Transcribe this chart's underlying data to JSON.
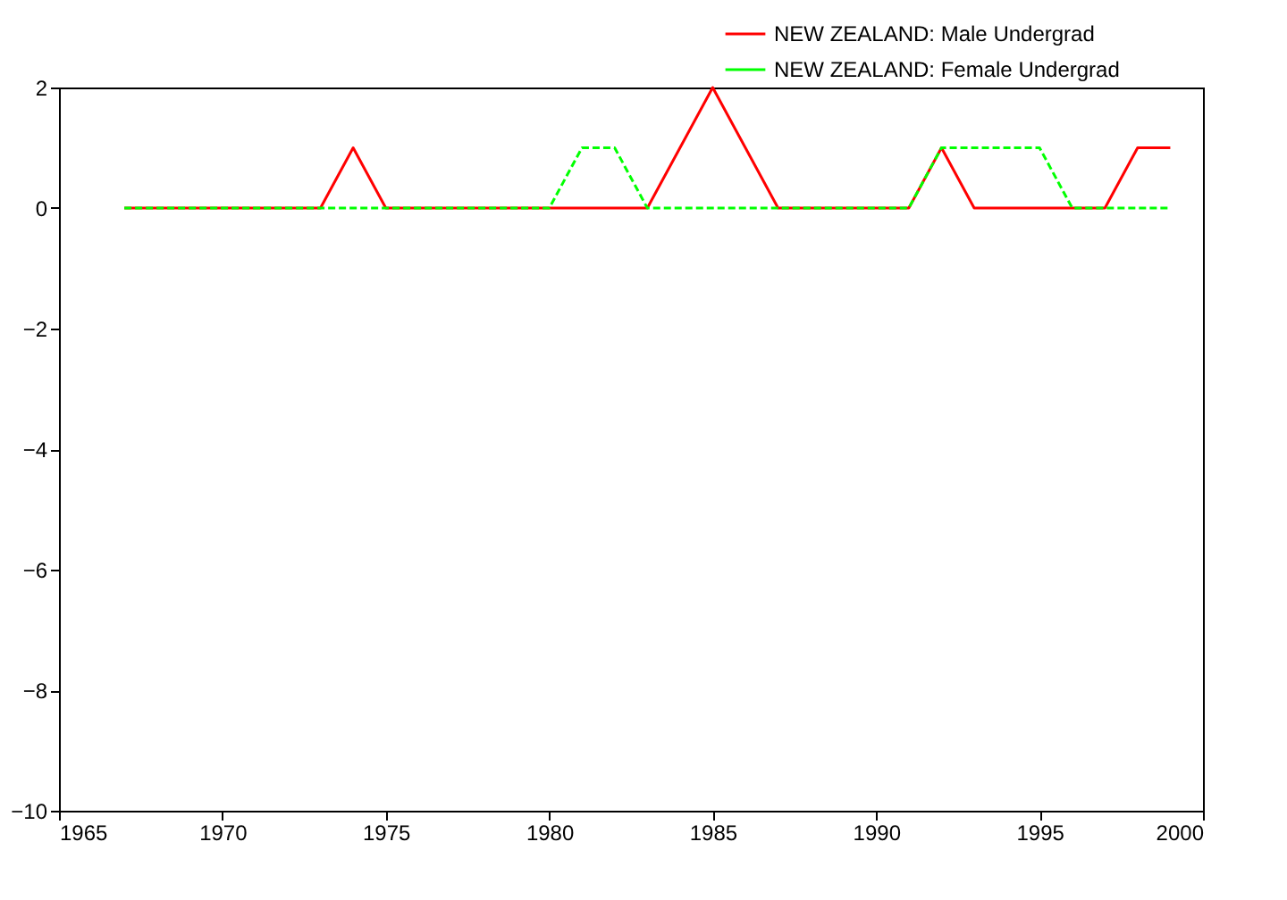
{
  "chart_data": {
    "type": "line",
    "x": [
      1967,
      1968,
      1969,
      1970,
      1971,
      1972,
      1973,
      1974,
      1975,
      1976,
      1977,
      1978,
      1979,
      1980,
      1981,
      1982,
      1983,
      1984,
      1985,
      1986,
      1987,
      1988,
      1989,
      1990,
      1991,
      1992,
      1993,
      1994,
      1995,
      1996,
      1997,
      1998,
      1999
    ],
    "series": [
      {
        "name": "NEW ZEALAND: Male Undergrad",
        "color": "#ff0000",
        "line_style": "solid",
        "values": [
          0,
          0,
          0,
          0,
          0,
          0,
          0,
          1,
          0,
          0,
          0,
          0,
          0,
          0,
          0,
          0,
          0,
          1,
          2,
          1,
          0,
          0,
          0,
          0,
          0,
          1,
          0,
          0,
          0,
          0,
          0,
          1,
          1
        ]
      },
      {
        "name": "NEW ZEALAND: Female Undergrad",
        "color": "#00ff00",
        "line_style": "dashed",
        "values": [
          0,
          0,
          0,
          0,
          0,
          0,
          0,
          0,
          0,
          0,
          0,
          0,
          0,
          0,
          1,
          1,
          0,
          0,
          0,
          0,
          0,
          0,
          0,
          0,
          0,
          1,
          1,
          1,
          1,
          0,
          0,
          0,
          0
        ]
      }
    ],
    "xlim": [
      1965,
      2000
    ],
    "xticks": [
      1965,
      1970,
      1975,
      1980,
      1985,
      1990,
      1995,
      2000
    ],
    "ylim": [
      -10,
      2
    ],
    "yticks": [
      -10,
      -8,
      -6,
      -4,
      -2,
      0,
      2
    ],
    "grid": false,
    "legend": "top right",
    "marker": "none"
  }
}
